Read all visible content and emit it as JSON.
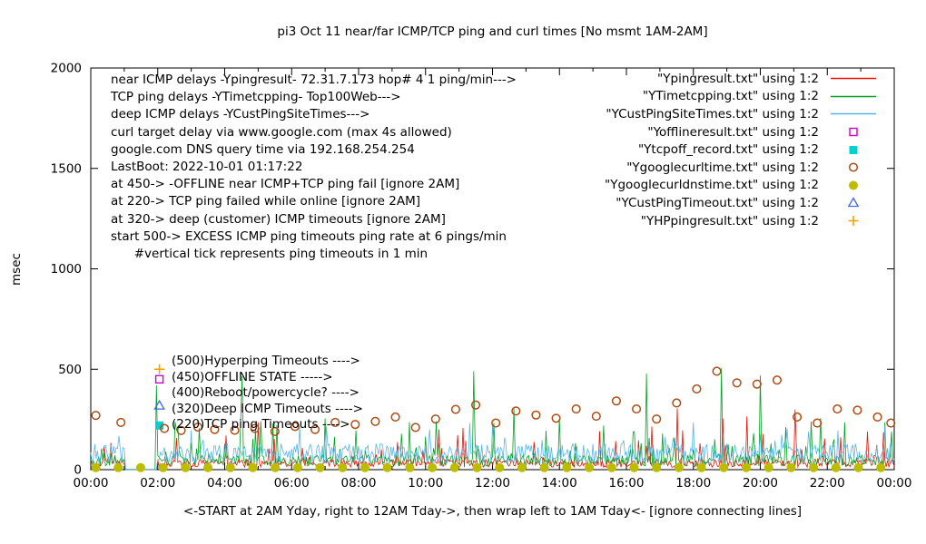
{
  "info_lines": [
    "near ICMP delays -Ypingresult- 72.31.7.173 hop# 4 1 ping/min--->",
    "TCP ping delays -YTimetcpping- Top100Web--->",
    "deep ICMP delays -YCustPingSiteTimes--->",
    "curl target delay via www.google.com (max 4s allowed)",
    "google.com DNS query time via 192.168.254.254",
    "LastBoot: 2022-10-01 01:17:22",
    "at 450-> -OFFLINE near ICMP+TCP ping fail [ignore 2AM]",
    "at 220-> TCP ping failed while online [ignore 2AM]",
    "at 320-> deep (customer) ICMP timeouts [ignore 2AM]",
    "start 500-> EXCESS ICMP ping timeouts ping rate at 6 pings/min",
    "      #vertical tick represents ping timeouts in 1 min"
  ],
  "marker_labels": [
    "(500)Hyperping Timeouts ---->",
    "(450)OFFLINE STATE ----->",
    "(400)Reboot/powercycle? ---->",
    "(320)Deep ICMP Timeouts ---->",
    "(220)TCP ping Timeouts ---->"
  ],
  "chart_data": {
    "type": "line",
    "title": "pi3 Oct 11  near/far ICMP/TCP ping and curl times [No msmt 1AM-2AM]",
    "xlabel": "<-START at 2AM Yday, right to 12AM Tday->, then wrap left to 1AM Tday<- [ignore connecting lines]",
    "ylabel": "msec",
    "xlim": [
      0,
      24
    ],
    "ylim": [
      0,
      2000
    ],
    "grid": false,
    "legend_position": "top-right",
    "yticks": [
      0,
      500,
      1000,
      1500,
      2000
    ],
    "xticks": [
      {
        "h": 0,
        "label": "00:00"
      },
      {
        "h": 2,
        "label": "02:00"
      },
      {
        "h": 4,
        "label": "04:00"
      },
      {
        "h": 6,
        "label": "06:00"
      },
      {
        "h": 8,
        "label": "08:00"
      },
      {
        "h": 10,
        "label": "10:00"
      },
      {
        "h": 12,
        "label": "12:00"
      },
      {
        "h": 14,
        "label": "14:00"
      },
      {
        "h": 16,
        "label": "16:00"
      },
      {
        "h": 18,
        "label": "18:00"
      },
      {
        "h": 20,
        "label": "20:00"
      },
      {
        "h": 22,
        "label": "22:00"
      },
      {
        "h": 24,
        "label": "00:00"
      }
    ],
    "no_measurement_gap_hours": [
      1,
      2
    ],
    "series": [
      {
        "key": "Ypingresult",
        "name": "\"Ypingresult.txt\" using 1:2",
        "color": "#ee1100",
        "style": "noisy-line",
        "noise": {
          "seed": 11,
          "base": 35,
          "amp": 170,
          "spike_prob": 0.12
        },
        "spikes": [
          [
            5.0,
            235
          ],
          [
            10.4,
            200
          ],
          [
            16.75,
            215
          ],
          [
            17.5,
            305
          ],
          [
            18.9,
            255
          ],
          [
            19.6,
            265
          ],
          [
            21.05,
            300
          ],
          [
            23.2,
            190
          ]
        ]
      },
      {
        "key": "YTimetcpping",
        "name": "\"YTimetcpping.txt\" using 1:2",
        "color": "#00a020",
        "style": "noisy-line",
        "noise": {
          "seed": 22,
          "base": 50,
          "amp": 220,
          "spike_prob": 0.14
        },
        "spikes": [
          [
            1.95,
            420
          ],
          [
            2.6,
            210
          ],
          [
            4.5,
            465
          ],
          [
            7.0,
            255
          ],
          [
            9.5,
            235
          ],
          [
            11.45,
            490
          ],
          [
            12.65,
            305
          ],
          [
            14.0,
            255
          ],
          [
            15.3,
            220
          ],
          [
            16.6,
            480
          ],
          [
            18.85,
            505
          ],
          [
            20.0,
            470
          ],
          [
            21.5,
            240
          ],
          [
            22.5,
            235
          ]
        ]
      },
      {
        "key": "YCustPingSiteTimes",
        "name": "\"YCustPingSiteTimes.txt\" using 1:2",
        "color": "#56b4e9",
        "style": "noisy-line",
        "noise": {
          "seed": 33,
          "base": 90,
          "amp": 120,
          "spike_prob": 0.08
        },
        "spikes": [
          [
            3.0,
            195
          ],
          [
            7.05,
            215
          ],
          [
            12.0,
            225
          ],
          [
            18.0,
            235
          ],
          [
            20.8,
            205
          ]
        ]
      },
      {
        "key": "Yofflineresult",
        "name": "\"Yofflineresult.txt\" using 1:2",
        "color": "#cc00cc",
        "style": "points",
        "marker": "square-open",
        "points": [
          [
            2.05,
            450
          ]
        ]
      },
      {
        "key": "Ytcpoff_record",
        "name": "\"Ytcpoff_record.txt\" using 1:2",
        "color": "#00d0d0",
        "style": "points",
        "marker": "square-filled",
        "points": [
          [
            2.05,
            220
          ]
        ]
      },
      {
        "key": "Ygooglecurltime",
        "name": "\"Ygooglecurltime.txt\" using 1:2",
        "color": "#b04a10",
        "style": "points",
        "marker": "circle-open",
        "points": [
          [
            0.15,
            270
          ],
          [
            0.9,
            235
          ],
          [
            2.2,
            205
          ],
          [
            2.7,
            195
          ],
          [
            3.2,
            212
          ],
          [
            3.7,
            200
          ],
          [
            4.3,
            196
          ],
          [
            4.9,
            205
          ],
          [
            5.5,
            190
          ],
          [
            6.1,
            215
          ],
          [
            6.7,
            200
          ],
          [
            7.3,
            235
          ],
          [
            7.9,
            225
          ],
          [
            8.5,
            240
          ],
          [
            9.1,
            262
          ],
          [
            9.7,
            210
          ],
          [
            10.3,
            252
          ],
          [
            10.9,
            300
          ],
          [
            11.5,
            322
          ],
          [
            12.1,
            232
          ],
          [
            12.7,
            292
          ],
          [
            13.3,
            272
          ],
          [
            13.9,
            256
          ],
          [
            14.5,
            302
          ],
          [
            15.1,
            266
          ],
          [
            15.7,
            342
          ],
          [
            16.3,
            302
          ],
          [
            16.9,
            252
          ],
          [
            17.5,
            332
          ],
          [
            18.1,
            402
          ],
          [
            18.7,
            490
          ],
          [
            19.3,
            432
          ],
          [
            19.9,
            426
          ],
          [
            20.5,
            446
          ],
          [
            21.1,
            262
          ],
          [
            21.7,
            232
          ],
          [
            22.3,
            302
          ],
          [
            22.9,
            296
          ],
          [
            23.5,
            262
          ],
          [
            23.9,
            232
          ]
        ]
      },
      {
        "key": "Ygooglecurldnstime",
        "name": "\"Ygooglecurldnstime.txt\" using 1:2",
        "color": "#bcbc00",
        "style": "points",
        "marker": "circle-filled",
        "points_gen": {
          "start": 0.15,
          "end": 23.9,
          "step": 0.67,
          "value": 10
        }
      },
      {
        "key": "YCustPingTimeout",
        "name": "\"YCustPingTimeout.txt\" using 1:2",
        "color": "#4169e1",
        "style": "points",
        "marker": "triangle-open",
        "points": [
          [
            2.05,
            320
          ]
        ]
      },
      {
        "key": "YHPpingresult",
        "name": "\"YHPpingresult.txt\" using 1:2",
        "color": "#efa400",
        "style": "points",
        "marker": "plus",
        "points": [
          [
            2.05,
            500
          ]
        ]
      }
    ]
  }
}
